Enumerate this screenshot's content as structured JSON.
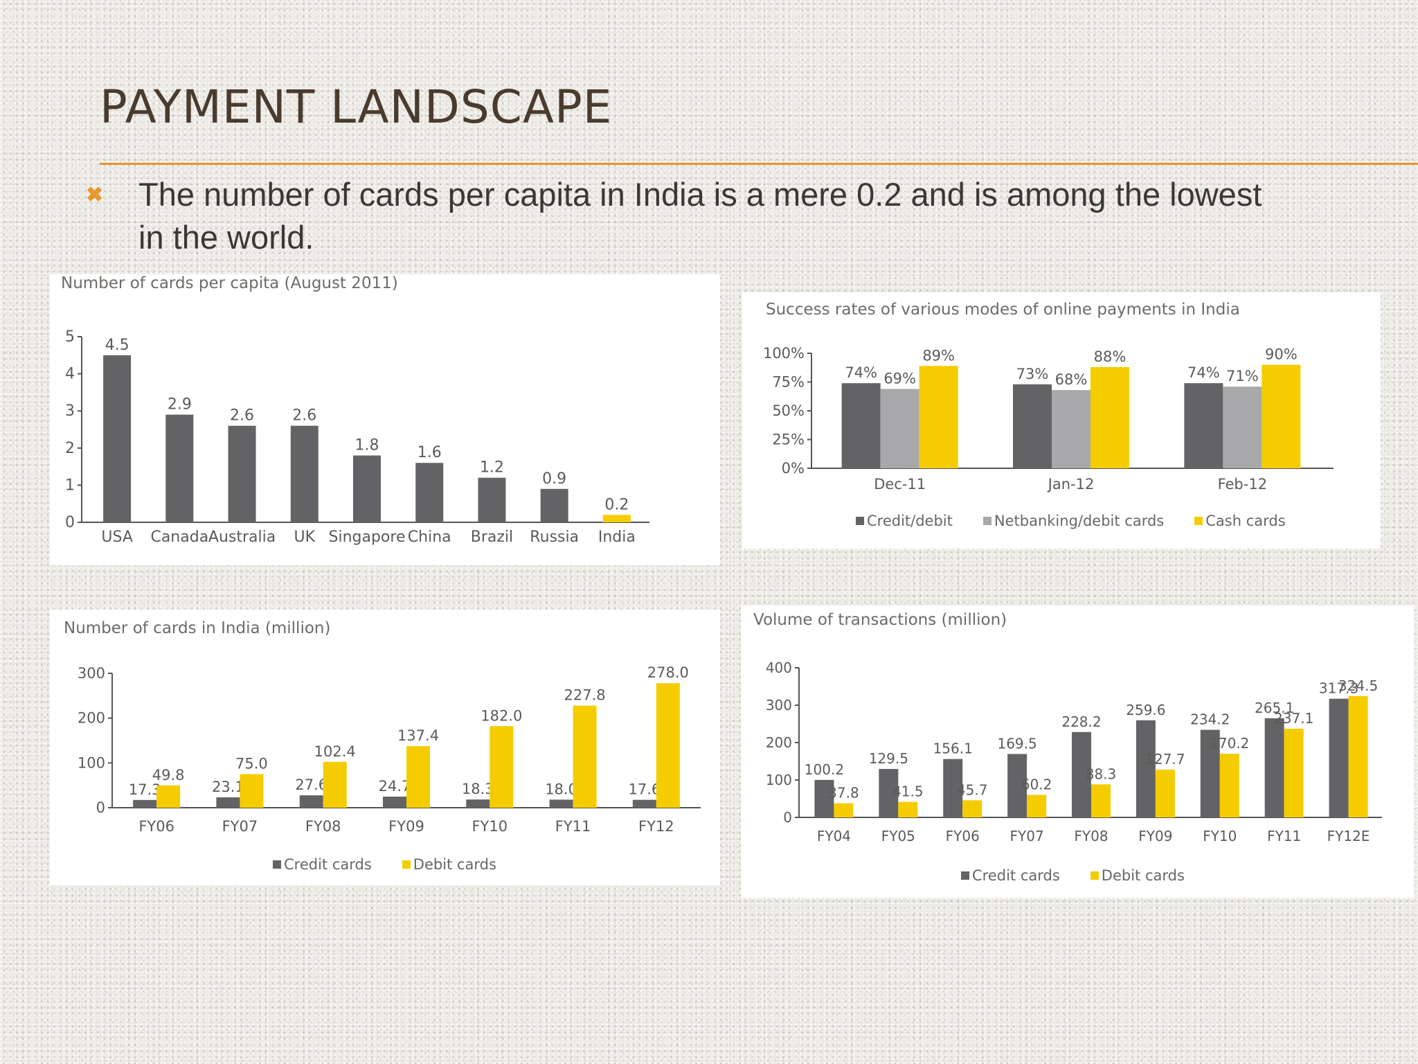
{
  "slide": {
    "title": "PAYMENT LANDSCAPE",
    "bullet": "The number of cards per capita in India is a mere 0.2 and is among the lowest in the world.",
    "bullet_icon": "cross-bullet-icon",
    "accent_color": "#e3932c"
  },
  "chart_data": [
    {
      "type": "bar",
      "title": "Number of cards per capita (August 2011)",
      "categories": [
        "USA",
        "Canada",
        "Australia",
        "UK",
        "Singapore",
        "China",
        "Brazil",
        "Russia",
        "India"
      ],
      "values": [
        4.5,
        2.9,
        2.6,
        2.6,
        1.8,
        1.6,
        1.2,
        0.9,
        0.2
      ],
      "value_labels": [
        "4.5",
        "2.9",
        "2.6",
        "2.6",
        "1.8",
        "1.6",
        "1.2",
        "0.9",
        "0.2"
      ],
      "highlight_category": "India",
      "ylim": [
        0,
        5
      ],
      "yticks": [
        "0",
        "1",
        "2",
        "3",
        "4",
        "5"
      ],
      "colors": {
        "bar": "#636365",
        "highlight": "#f5cc00"
      },
      "grid": false
    },
    {
      "type": "bar",
      "title": "Success rates of various modes of online payments in India",
      "categories": [
        "Dec-11",
        "Jan-12",
        "Feb-12"
      ],
      "series": [
        {
          "name": "Credit/debit",
          "values": [
            74,
            73,
            74
          ],
          "labels": [
            "74%",
            "73%",
            "74%"
          ],
          "color": "#636365"
        },
        {
          "name": "Netbanking/debit cards",
          "values": [
            69,
            68,
            71
          ],
          "labels": [
            "69%",
            "68%",
            "71%"
          ],
          "color": "#a8a8aa"
        },
        {
          "name": "Cash cards",
          "values": [
            89,
            88,
            90
          ],
          "labels": [
            "89%",
            "88%",
            "90%"
          ],
          "color": "#f5cc00"
        }
      ],
      "ylim": [
        0,
        100
      ],
      "yticks": [
        "0%",
        "25%",
        "50%",
        "75%",
        "100%"
      ],
      "legend": "bottom",
      "grid": false
    },
    {
      "type": "bar",
      "title": "Number of cards in India (million)",
      "categories": [
        "FY06",
        "FY07",
        "FY08",
        "FY09",
        "FY10",
        "FY11",
        "FY12"
      ],
      "series": [
        {
          "name": "Credit cards",
          "values": [
            17.3,
            23.1,
            27.6,
            24.7,
            18.3,
            18.0,
            17.6
          ],
          "labels": [
            "17.3",
            "23.1",
            "27.6",
            "24.7",
            "18.3",
            "18.0",
            "17.6"
          ],
          "color": "#636365"
        },
        {
          "name": "Debit cards",
          "values": [
            49.8,
            75.0,
            102.4,
            137.4,
            182.0,
            227.8,
            278.0
          ],
          "labels": [
            "49.8",
            "75.0",
            "102.4",
            "137.4",
            "182.0",
            "227.8",
            "278.0"
          ],
          "color": "#f5cc00"
        }
      ],
      "ylim": [
        0,
        300
      ],
      "yticks": [
        "0",
        "100",
        "200",
        "300"
      ],
      "legend": "bottom",
      "grid": false
    },
    {
      "type": "bar",
      "title": "Volume of transactions (million)",
      "categories": [
        "FY04",
        "FY05",
        "FY06",
        "FY07",
        "FY08",
        "FY09",
        "FY10",
        "FY11",
        "FY12E"
      ],
      "series": [
        {
          "name": "Credit cards",
          "values": [
            100.2,
            129.5,
            156.1,
            169.5,
            228.2,
            259.6,
            234.2,
            265.1,
            317.3
          ],
          "labels": [
            "100.2",
            "129.5",
            "156.1",
            "169.5",
            "228.2",
            "259.6",
            "234.2",
            "265.1",
            "317.3"
          ],
          "color": "#636365"
        },
        {
          "name": "Debit cards",
          "values": [
            37.8,
            41.5,
            45.7,
            60.2,
            88.3,
            127.7,
            170.2,
            237.1,
            324.5
          ],
          "labels": [
            "37.8",
            "41.5",
            "45.7",
            "60.2",
            "88.3",
            "127.7",
            "170.2",
            "237.1",
            "324.5"
          ],
          "color": "#f5cc00"
        }
      ],
      "ylim": [
        0,
        400
      ],
      "yticks": [
        "0",
        "100",
        "200",
        "300",
        "400"
      ],
      "legend": "bottom",
      "grid": false
    }
  ]
}
